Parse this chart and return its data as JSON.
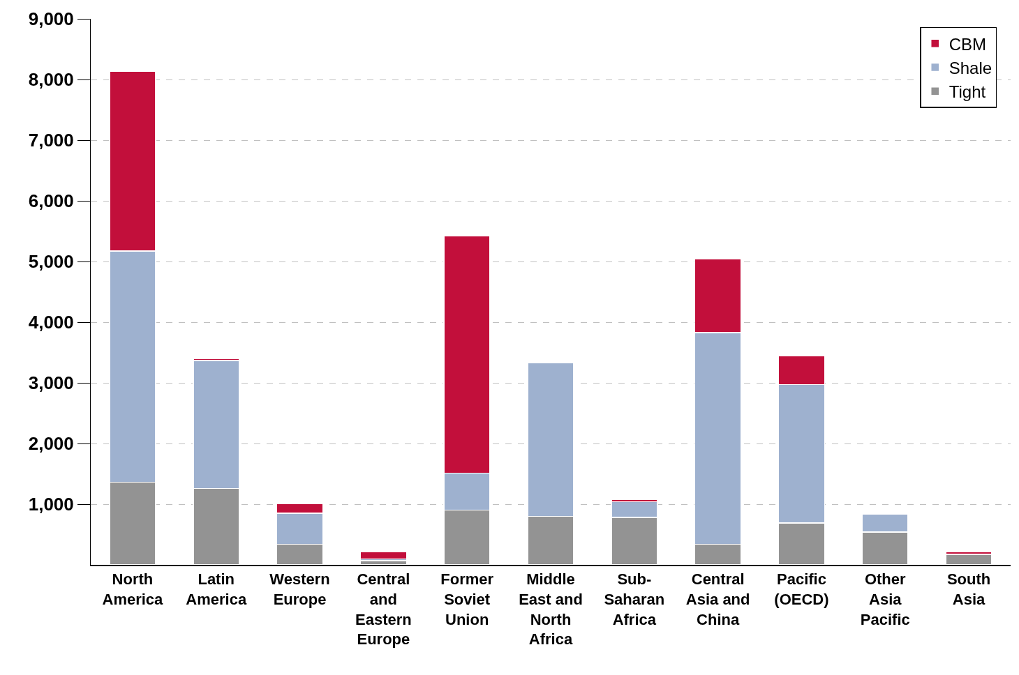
{
  "chart_data": {
    "type": "bar",
    "stacked": true,
    "categories": [
      "North America",
      "Latin America",
      "Western Europe",
      "Central and Eastern Europe",
      "Former Soviet Union",
      "Middle East and North Africa",
      "Sub-Saharan Africa",
      "Central Asia and China",
      "Pacific (OECD)",
      "Other Asia Pacific",
      "South Asia"
    ],
    "series": [
      {
        "name": "Tight",
        "color": "#939393",
        "values": [
          1360,
          1260,
          340,
          70,
          900,
          800,
          780,
          340,
          690,
          540,
          170
        ]
      },
      {
        "name": "Shale",
        "color": "#9eb1cf",
        "values": [
          3810,
          2110,
          510,
          30,
          610,
          2530,
          260,
          3490,
          2280,
          300,
          null
        ]
      },
      {
        "name": "CBM",
        "color": "#c20f3b",
        "values": [
          2970,
          30,
          160,
          120,
          3910,
          null,
          40,
          1210,
          480,
          null,
          50
        ]
      }
    ],
    "ylim": [
      0,
      9000
    ],
    "yticks": [
      {
        "value": 1000,
        "label": "1,000"
      },
      {
        "value": 2000,
        "label": "2,000"
      },
      {
        "value": 3000,
        "label": "3,000"
      },
      {
        "value": 4000,
        "label": "4,000"
      },
      {
        "value": 5000,
        "label": "5,000"
      },
      {
        "value": 6000,
        "label": "6,000"
      },
      {
        "value": 7000,
        "label": "7,000"
      },
      {
        "value": 8000,
        "label": "8,000"
      },
      {
        "value": 9000,
        "label": "9,000"
      }
    ],
    "grid": "y",
    "legend": "top right"
  }
}
